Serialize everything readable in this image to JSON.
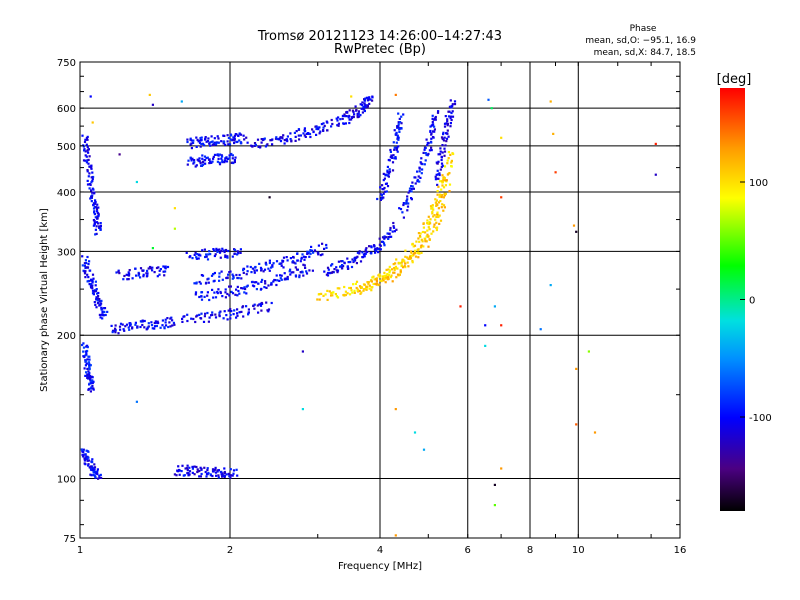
{
  "chart_data": {
    "type": "scatter",
    "title": "Tromsø 20121123 14:26:00–14:27:43",
    "subtitle": "RwPretec (Bp)",
    "xlabel": "Frequency [MHz]",
    "ylabel": "Stationary phase Virtual Height [km]",
    "x_scale": "log",
    "y_scale": "log",
    "xlim": [
      1,
      16
    ],
    "ylim": [
      75,
      750
    ],
    "x_ticks": [
      1,
      2,
      4,
      6,
      8,
      10,
      16
    ],
    "y_ticks": [
      75,
      100,
      200,
      300,
      400,
      500,
      600,
      750
    ],
    "grid": true,
    "stats": {
      "title": "Phase",
      "line_o": "mean, sd,O: −95.1, 16.9",
      "line_x": "mean, sd,X:  84.7, 18.5"
    },
    "colorbar": {
      "label": "[deg]",
      "range": [
        -180,
        180
      ],
      "ticks": [
        100,
        0,
        -100
      ]
    },
    "traces": [
      {
        "name": "",
        "phase": -105,
        "x": [
          1.02,
          1.03,
          1.05,
          1.06,
          1.07,
          1.08,
          1.09
        ],
        "y": [
          520,
          480,
          430,
          395,
          370,
          345,
          330
        ]
      },
      {
        "name": "",
        "phase": -100,
        "x": [
          1.02,
          1.04,
          1.06,
          1.08,
          1.1,
          1.12
        ],
        "y": [
          290,
          270,
          255,
          240,
          228,
          218
        ]
      },
      {
        "name": "",
        "phase": -95,
        "x": [
          1.02,
          1.03,
          1.04,
          1.05,
          1.06
        ],
        "y": [
          190,
          178,
          168,
          160,
          155
        ]
      },
      {
        "name": "",
        "phase": -100,
        "x": [
          1.02,
          1.03,
          1.05,
          1.07,
          1.09
        ],
        "y": [
          115,
          110,
          106,
          103,
          101
        ]
      },
      {
        "name": "",
        "phase": -100,
        "x": [
          1.15,
          1.25,
          1.35,
          1.45,
          1.55
        ],
        "y": [
          205,
          208,
          210,
          212,
          214
        ]
      },
      {
        "name": "",
        "phase": -105,
        "x": [
          1.2,
          1.3,
          1.4,
          1.5
        ],
        "y": [
          268,
          270,
          272,
          275
        ]
      },
      {
        "name": "",
        "phase": -100,
        "x": [
          1.65,
          1.75,
          1.85,
          1.95,
          2.05,
          2.15
        ],
        "y": [
          505,
          510,
          512,
          515,
          518,
          520
        ]
      },
      {
        "name": "",
        "phase": -100,
        "x": [
          1.65,
          1.75,
          1.85,
          1.95,
          2.05
        ],
        "y": [
          460,
          465,
          468,
          470,
          472
        ]
      },
      {
        "name": "",
        "phase": -105,
        "x": [
          2.2,
          2.4,
          2.6,
          2.8,
          3.0,
          3.2
        ],
        "y": [
          500,
          510,
          520,
          530,
          540,
          555
        ]
      },
      {
        "name": "",
        "phase": -110,
        "x": [
          3.3,
          3.45,
          3.6,
          3.75,
          3.85
        ],
        "y": [
          560,
          575,
          590,
          610,
          625
        ]
      },
      {
        "name": "",
        "phase": -100,
        "x": [
          1.65,
          1.8,
          1.95,
          2.1
        ],
        "y": [
          295,
          296,
          297,
          298
        ]
      },
      {
        "name": "",
        "phase": -105,
        "x": [
          1.6,
          1.8,
          2.0,
          2.2,
          2.4
        ],
        "y": [
          215,
          218,
          222,
          226,
          230
        ]
      },
      {
        "name": "",
        "phase": -100,
        "x": [
          1.7,
          1.9,
          2.1,
          2.3,
          2.5,
          2.7,
          2.9
        ],
        "y": [
          240,
          245,
          250,
          255,
          262,
          270,
          278
        ]
      },
      {
        "name": "",
        "phase": -100,
        "x": [
          1.7,
          1.9,
          2.1,
          2.3,
          2.5,
          2.7,
          2.9,
          3.1
        ],
        "y": [
          260,
          265,
          270,
          276,
          283,
          290,
          298,
          305
        ]
      },
      {
        "name": "",
        "phase": -105,
        "x": [
          3.1,
          3.3,
          3.5,
          3.7,
          3.9,
          4.1,
          4.3
        ],
        "y": [
          270,
          278,
          285,
          295,
          305,
          320,
          340
        ]
      },
      {
        "name": "",
        "phase": -100,
        "x": [
          4.0,
          4.1,
          4.2,
          4.3,
          4.35,
          4.4
        ],
        "y": [
          380,
          420,
          460,
          500,
          540,
          580
        ]
      },
      {
        "name": "",
        "phase": -100,
        "x": [
          4.4,
          4.6,
          4.8,
          5.0,
          5.1,
          5.2
        ],
        "y": [
          360,
          400,
          440,
          490,
          540,
          590
        ]
      },
      {
        "name": "",
        "phase": -110,
        "x": [
          5.2,
          5.3,
          5.4,
          5.5,
          5.6
        ],
        "y": [
          420,
          470,
          520,
          570,
          620
        ]
      },
      {
        "name": "",
        "phase": 100,
        "x": [
          3.0,
          3.3,
          3.6,
          3.9,
          4.2,
          4.5,
          4.8,
          5.0,
          5.2,
          5.4,
          5.6
        ],
        "y": [
          242,
          246,
          252,
          260,
          272,
          290,
          315,
          345,
          385,
          430,
          490
        ]
      },
      {
        "name": "",
        "phase": 110,
        "x": [
          3.6,
          3.9,
          4.2,
          4.5,
          4.8,
          5.1,
          5.3,
          5.5
        ],
        "y": [
          248,
          256,
          266,
          280,
          300,
          330,
          370,
          420
        ]
      },
      {
        "name": "",
        "phase": -105,
        "x": [
          1.55,
          1.65,
          1.75,
          1.85,
          1.95,
          2.05
        ],
        "y": [
          104,
          104,
          103,
          103,
          103,
          102
        ]
      }
    ],
    "scattered_points": [
      {
        "x": 1.05,
        "y": 635,
        "phase": -100
      },
      {
        "x": 1.38,
        "y": 640,
        "phase": 110
      },
      {
        "x": 1.4,
        "y": 610,
        "phase": -120
      },
      {
        "x": 1.06,
        "y": 560,
        "phase": 110
      },
      {
        "x": 1.6,
        "y": 620,
        "phase": -40
      },
      {
        "x": 3.5,
        "y": 635,
        "phase": 100
      },
      {
        "x": 4.3,
        "y": 640,
        "phase": 140
      },
      {
        "x": 6.6,
        "y": 625,
        "phase": -70
      },
      {
        "x": 6.7,
        "y": 600,
        "phase": 10
      },
      {
        "x": 7.0,
        "y": 520,
        "phase": 100
      },
      {
        "x": 8.8,
        "y": 620,
        "phase": 120
      },
      {
        "x": 8.9,
        "y": 530,
        "phase": 120
      },
      {
        "x": 9.0,
        "y": 440,
        "phase": 160
      },
      {
        "x": 7.0,
        "y": 390,
        "phase": 160
      },
      {
        "x": 9.8,
        "y": 340,
        "phase": 130
      },
      {
        "x": 9.9,
        "y": 330,
        "phase": -170
      },
      {
        "x": 8.8,
        "y": 255,
        "phase": -40
      },
      {
        "x": 6.8,
        "y": 230,
        "phase": -40
      },
      {
        "x": 6.5,
        "y": 210,
        "phase": -100
      },
      {
        "x": 7.0,
        "y": 210,
        "phase": 170
      },
      {
        "x": 8.4,
        "y": 206,
        "phase": -60
      },
      {
        "x": 6.5,
        "y": 190,
        "phase": -20
      },
      {
        "x": 10.5,
        "y": 185,
        "phase": 60
      },
      {
        "x": 9.9,
        "y": 170,
        "phase": 130
      },
      {
        "x": 9.9,
        "y": 130,
        "phase": 150
      },
      {
        "x": 10.8,
        "y": 125,
        "phase": 130
      },
      {
        "x": 7.0,
        "y": 105,
        "phase": 130
      },
      {
        "x": 6.8,
        "y": 97,
        "phase": -170
      },
      {
        "x": 6.8,
        "y": 88,
        "phase": 50
      },
      {
        "x": 14.3,
        "y": 505,
        "phase": 170
      },
      {
        "x": 14.3,
        "y": 435,
        "phase": -120
      },
      {
        "x": 1.2,
        "y": 480,
        "phase": -140
      },
      {
        "x": 1.3,
        "y": 420,
        "phase": -20
      },
      {
        "x": 1.55,
        "y": 370,
        "phase": 100
      },
      {
        "x": 2.4,
        "y": 390,
        "phase": -170
      },
      {
        "x": 1.55,
        "y": 335,
        "phase": 70
      },
      {
        "x": 1.3,
        "y": 145,
        "phase": -60
      },
      {
        "x": 1.4,
        "y": 305,
        "phase": 20
      },
      {
        "x": 2.8,
        "y": 185,
        "phase": -120
      },
      {
        "x": 2.8,
        "y": 140,
        "phase": -20
      },
      {
        "x": 4.3,
        "y": 140,
        "phase": 130
      },
      {
        "x": 4.7,
        "y": 125,
        "phase": -20
      },
      {
        "x": 4.9,
        "y": 115,
        "phase": -40
      },
      {
        "x": 4.3,
        "y": 76,
        "phase": 130
      },
      {
        "x": 5.8,
        "y": 230,
        "phase": 170
      }
    ]
  }
}
